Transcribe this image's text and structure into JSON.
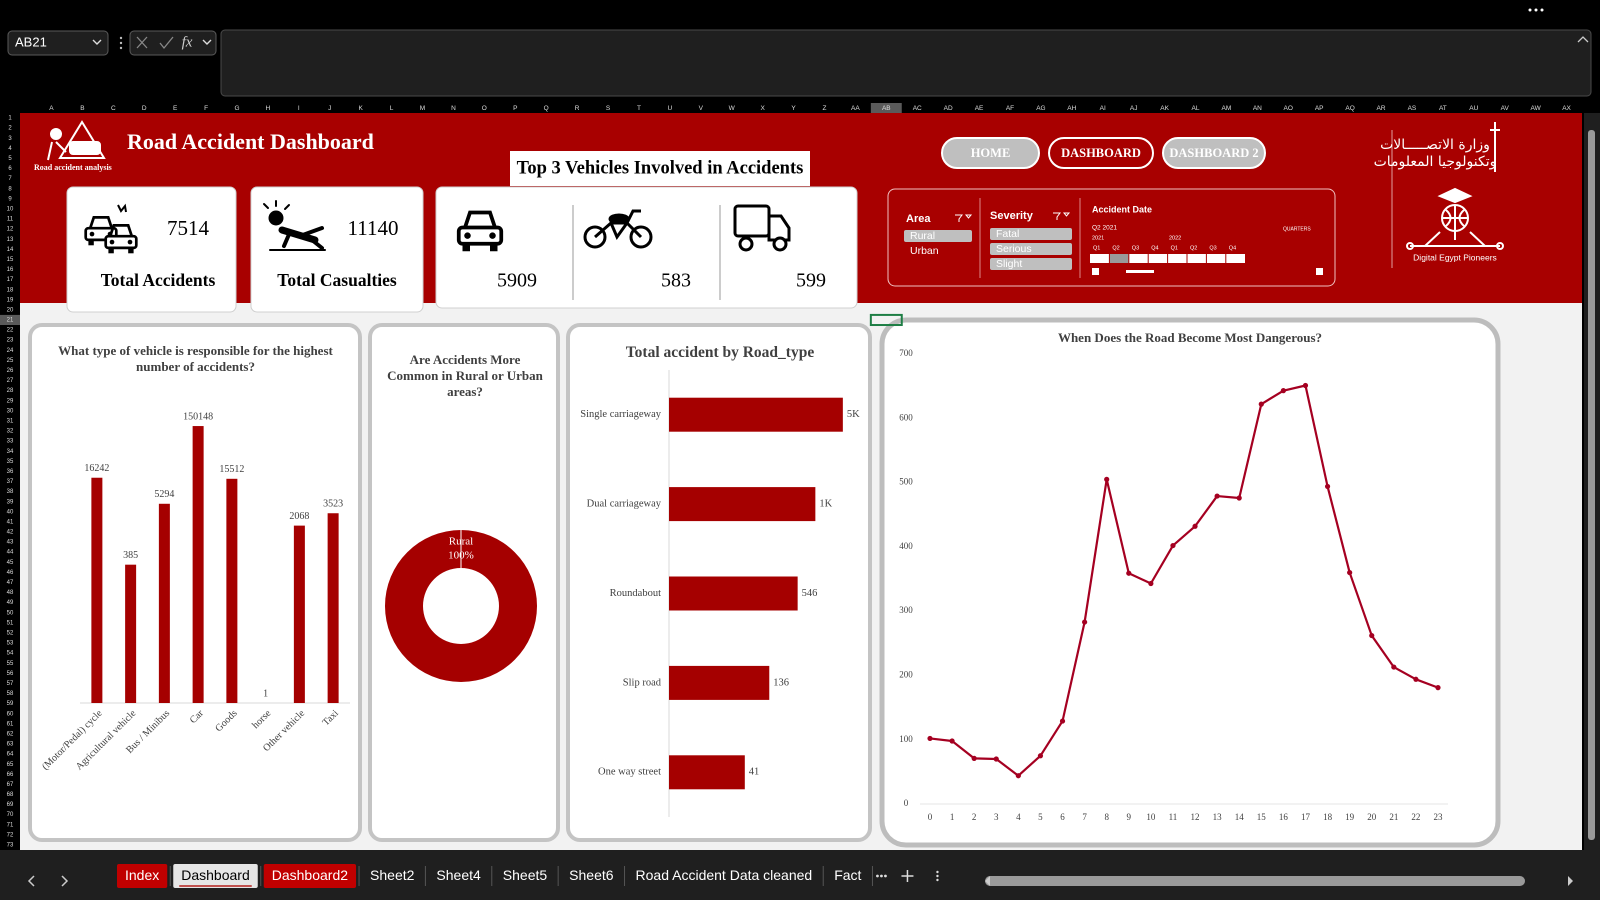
{
  "formula_bar": {
    "name_box": "AB21",
    "function_label": "fx"
  },
  "column_headers": [
    "A",
    "B",
    "C",
    "D",
    "E",
    "F",
    "G",
    "H",
    "I",
    "J",
    "K",
    "L",
    "M",
    "N",
    "O",
    "P",
    "Q",
    "R",
    "S",
    "T",
    "U",
    "V",
    "W",
    "X",
    "Y",
    "Z",
    "AA",
    "AB",
    "AC",
    "AD",
    "AE",
    "AF",
    "AG",
    "AH",
    "AI",
    "AJ",
    "AK",
    "AL",
    "AM",
    "AN",
    "AO",
    "AP",
    "AQ",
    "AR",
    "AS",
    "AT",
    "AU",
    "AV",
    "AW",
    "AX"
  ],
  "row_headers": [
    1,
    2,
    3,
    4,
    5,
    6,
    7,
    8,
    9,
    10,
    11,
    12,
    13,
    14,
    15,
    16,
    17,
    18,
    19,
    20,
    21,
    22,
    23,
    24,
    25,
    26,
    27,
    28,
    29,
    30,
    31,
    32,
    33,
    34,
    35,
    36,
    37,
    38,
    39,
    40,
    41,
    42,
    43,
    44,
    45,
    46,
    47,
    48,
    49,
    50,
    51,
    52,
    53,
    54,
    55,
    56,
    57,
    58,
    59,
    60,
    61,
    62,
    63,
    64,
    65,
    66,
    67,
    68,
    69,
    70,
    71,
    72,
    73
  ],
  "header": {
    "title": "Road Accident Dashboard",
    "logo_caption": "Road accident analysis",
    "nav_buttons": [
      "HOME",
      "DASHBOARD",
      "DASHBOARD 2"
    ],
    "partner_logo": {
      "arabic_lines": [
        "وزارة الاتصـــــالات",
        "وتكنولوجيا المعلومات"
      ],
      "caption": "Digital Egypt Pioneers"
    }
  },
  "kpis": [
    {
      "label": "Total Accidents",
      "value": 7514
    },
    {
      "label": "Total Casualties",
      "value": 11140
    }
  ],
  "top_vehicles": {
    "title": "Top 3 Vehicles Involved in Accidents",
    "values": [
      5909,
      583,
      599
    ]
  },
  "slicers": {
    "area": {
      "title": "Area",
      "items": [
        {
          "label": "Rural",
          "selected": true
        },
        {
          "label": "Urban",
          "selected": false
        }
      ]
    },
    "severity": {
      "title": "Severity",
      "items": [
        {
          "label": "Fatal",
          "selected": true
        },
        {
          "label": "Serious",
          "selected": true
        },
        {
          "label": "Slight",
          "selected": true
        }
      ]
    },
    "accident_date": {
      "title": "Accident Date",
      "range_label": "Q2 2021",
      "level": "QUARTERS",
      "years": [
        "2021",
        "2022"
      ],
      "quarters": [
        "Q1",
        "Q2",
        "Q3",
        "Q4",
        "Q1",
        "Q2",
        "Q3",
        "Q4"
      ]
    }
  },
  "chart_data": [
    {
      "type": "bar",
      "orientation": "vertical",
      "title": "What type of vehicle is responsible for the highest number of accidents?",
      "categories": [
        "(Motor/Pedal) cycle",
        "Agricultural vehicle",
        "Bus / Minibus",
        "Car",
        "Goods",
        "horse",
        "Other vehicle",
        "Taxi"
      ],
      "values": [
        16242,
        385,
        5294,
        150148,
        15512,
        1,
        2068,
        3523
      ],
      "color": "#a50000",
      "log_scale": true,
      "ylim": [
        1,
        1000000
      ]
    },
    {
      "type": "donut",
      "title": "Are Accidents More Common in Rural or Urban areas?",
      "categories": [
        "Rural"
      ],
      "values": [
        100
      ],
      "value_labels": [
        "100%"
      ],
      "color": "#a50000"
    },
    {
      "type": "bar",
      "orientation": "horizontal",
      "title": "Total accident by Road_type",
      "categories": [
        "Single carriageway",
        "Dual carriageway",
        "Roundabout",
        "Slip road",
        "One way street"
      ],
      "values": [
        5000,
        1300,
        546,
        136,
        41
      ],
      "value_labels": [
        "5K",
        "1K",
        "546",
        "136",
        "41"
      ],
      "color": "#a50000",
      "log_scale": true,
      "xlim": [
        1,
        10000
      ]
    },
    {
      "type": "line",
      "title": "When Does the Road Become Most Dangerous?",
      "x": [
        0,
        1,
        2,
        3,
        4,
        5,
        6,
        7,
        8,
        9,
        10,
        11,
        12,
        13,
        14,
        15,
        16,
        17,
        18,
        19,
        20,
        21,
        22,
        23
      ],
      "values": [
        102,
        98,
        71,
        70,
        44,
        75,
        129,
        283,
        505,
        359,
        343,
        402,
        432,
        479,
        476,
        622,
        643,
        651,
        494,
        360,
        262,
        213,
        194,
        181
      ],
      "color": "#a50021",
      "xlim": [
        0,
        23
      ],
      "xticks": [
        0,
        1,
        2,
        3,
        4,
        5,
        6,
        7,
        8,
        9,
        10,
        11,
        12,
        13,
        14,
        15,
        16,
        17,
        18,
        19,
        20,
        21,
        22,
        23
      ],
      "ylim": [
        0,
        700
      ],
      "yticks": [
        0,
        100,
        200,
        300,
        400,
        500,
        600,
        700
      ]
    }
  ],
  "sheet_tabs": [
    {
      "name": "Index",
      "color": "#c00000"
    },
    {
      "name": "Dashboard",
      "color": null
    },
    {
      "name": "Dashboard2",
      "color": "#c00000"
    },
    {
      "name": "Sheet2",
      "color": null
    },
    {
      "name": "Sheet4",
      "color": null
    },
    {
      "name": "Sheet5",
      "color": null
    },
    {
      "name": "Sheet6",
      "color": null
    },
    {
      "name": "Road Accident Data cleaned",
      "color": null
    },
    {
      "name": "Fact",
      "color": null
    }
  ],
  "active_sheet": "Dashboard"
}
